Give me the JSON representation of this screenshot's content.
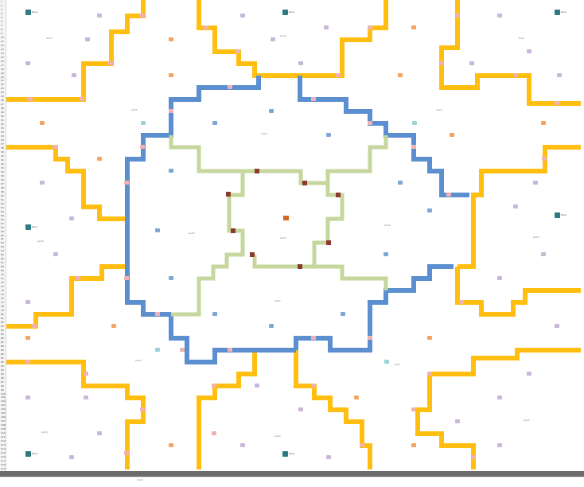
{
  "colors": {
    "outer_border": "#ffbe10",
    "middle_border": "#5b8fd0",
    "inner_border": "#c5d79c",
    "node_inner": "#8b3a2e",
    "node_outer": "#f0b3b3",
    "center_node": "#d2691e",
    "badge_teal": "#2f7a82",
    "badge_purple": "#c9b6d9",
    "badge_orange": "#f4a460",
    "badge_blue": "#7fa6d6",
    "badge_cyan": "#9ad4d6",
    "header_bg": "#6b6b6b"
  },
  "row_headers": [
    "1",
    "2",
    "3",
    "4",
    "5",
    "6",
    "7",
    "8",
    "9",
    "10",
    "11",
    "12",
    "13",
    "14",
    "15",
    "16",
    "17",
    "18",
    "19",
    "20",
    "21",
    "22",
    "23",
    "24",
    "25",
    "26",
    "27",
    "28",
    "29",
    "30",
    "31",
    "32",
    "33",
    "34",
    "35",
    "36",
    "37",
    "38",
    "39",
    "40",
    "41",
    "42",
    "43",
    "44",
    "45",
    "46",
    "47",
    "48",
    "49",
    "50",
    "51",
    "52",
    "53",
    "54",
    "55",
    "56",
    "57",
    "58",
    "59",
    "60",
    "61",
    "62",
    "63",
    "64",
    "65",
    "66",
    "67",
    "68",
    "69",
    "70",
    "71",
    "72",
    "73",
    "74",
    "75",
    "76",
    "77",
    "78",
    "79",
    "80",
    "81",
    "82",
    "83",
    "84",
    "85",
    "86",
    "87",
    "88",
    "89",
    "90",
    "91",
    "92",
    "93",
    "94",
    "95",
    "96",
    "97",
    "98",
    "99",
    "100",
    "101",
    "102",
    "103",
    "104",
    "105",
    "106",
    "107",
    "108",
    "109",
    "110",
    "111",
    "112",
    "113",
    "114",
    "115",
    "116",
    "117",
    "118",
    "119"
  ],
  "map": {
    "teal_badges": [
      {
        "label": "Base",
        "icon": "castle-icon"
      },
      {
        "label": "Base",
        "icon": "castle-icon"
      },
      {
        "label": "Base",
        "icon": "castle-icon"
      },
      {
        "label": "Base",
        "icon": "castle-icon"
      },
      {
        "label": "Base",
        "icon": "castle-icon"
      },
      {
        "label": "Base",
        "icon": "castle-icon"
      },
      {
        "label": "Base",
        "icon": "castle-icon"
      }
    ],
    "region_labels": [
      "Ankh",
      "Ankh",
      "Kura",
      "Ankh",
      "Ankh",
      "Ankh",
      "Ankh",
      "Ankh",
      "Ankh",
      "Ankh",
      "Ankh",
      "Ankh",
      "Ankh",
      "Ankh",
      "Ankh",
      "Ankh",
      "Ankh"
    ],
    "center_label": "Ankh"
  }
}
